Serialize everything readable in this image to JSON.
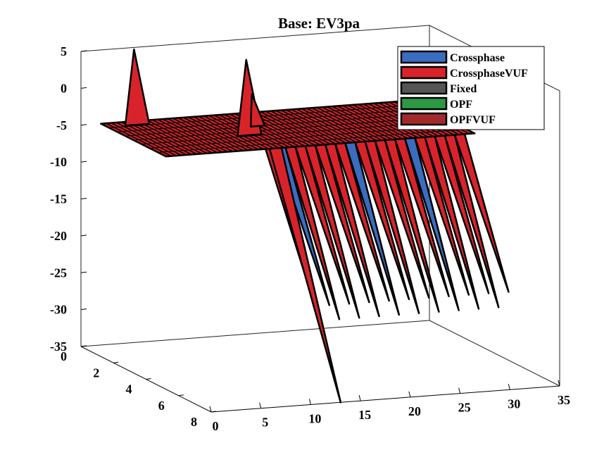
{
  "chart_data": {
    "type": "surface3d",
    "title": "Base: EV3pa",
    "xlabel": "",
    "ylabel": "",
    "zlabel": "",
    "xlim": [
      0,
      35
    ],
    "ylim": [
      0,
      8
    ],
    "zlim": [
      -35,
      5
    ],
    "x_ticks": [
      0,
      5,
      10,
      15,
      20,
      25,
      30,
      35
    ],
    "y_ticks": [
      0,
      2,
      4,
      6,
      8
    ],
    "z_ticks": [
      5,
      0,
      -5,
      -10,
      -15,
      -20,
      -25,
      -30,
      -35
    ],
    "grid": false,
    "legend_position": "top-right",
    "series": [
      {
        "name": "Crossphase",
        "color": "#3a6cc0"
      },
      {
        "name": "CrossphaseVUF",
        "color": "#d8232a"
      },
      {
        "name": "Fixed",
        "color": "#555555"
      },
      {
        "name": "OPF",
        "color": "#2e9944"
      },
      {
        "name": "OPFVUF",
        "color": "#a32a2a"
      }
    ],
    "surface_baseline": -5,
    "troughs": [
      {
        "x_from": 12,
        "x_to": 32,
        "y": 8,
        "depth": -25,
        "series": "Crossphase"
      },
      {
        "x_from": 12,
        "x_to": 32,
        "y": 8,
        "depth": -25,
        "series": "CrossphaseVUF"
      },
      {
        "x": 13,
        "y": 8,
        "depth": -35,
        "series": "CrossphaseVUF"
      }
    ],
    "peaks": [
      {
        "x": 5,
        "y": 0,
        "z": 1,
        "series": "CrossphaseVUF"
      },
      {
        "x": 13,
        "y": 2,
        "z": 1,
        "series": "CrossphaseVUF"
      }
    ]
  }
}
